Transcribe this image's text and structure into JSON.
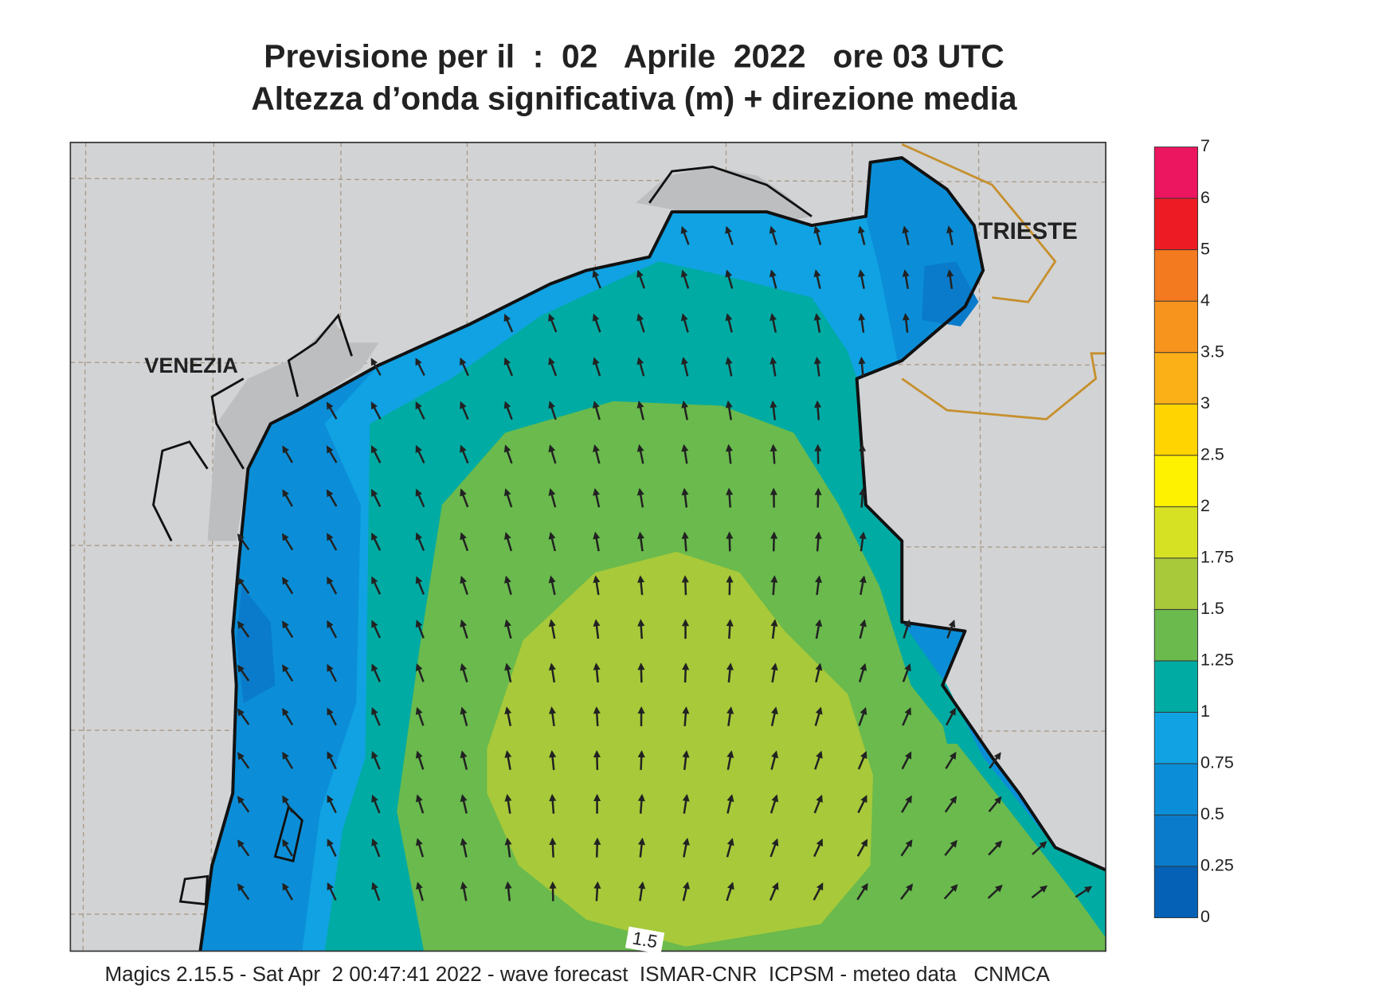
{
  "header": {
    "title_lines": [
      "Previsione per il  :  02   Aprile  2022   ore 03 UTC",
      "Altezza d’onda significativa (m) + direzione media"
    ]
  },
  "map": {
    "place_labels": [
      "VENEZIA",
      "TRIESTE"
    ],
    "contour_labels": [
      "1.5"
    ]
  },
  "colorbar": {
    "levels": [
      0,
      0.25,
      0.5,
      0.75,
      1,
      1.25,
      1.5,
      1.75,
      2,
      2.5,
      3,
      3.5,
      4,
      5,
      6,
      7
    ],
    "colors": [
      "#0461b5",
      "#0a7bcb",
      "#0b8ed7",
      "#10a2e2",
      "#00aba3",
      "#6aba4d",
      "#a7c93a",
      "#d6e123",
      "#fff200",
      "#ffd400",
      "#fbb017",
      "#f7941d",
      "#f47a20",
      "#ed1c24",
      "#ec155f"
    ]
  },
  "footer": "Magics 2.15.5 - Sat Apr  2 00:47:41 2022 - wave forecast  ISMAR-CNR  ICPSM - meteo data   CNMCA"
}
